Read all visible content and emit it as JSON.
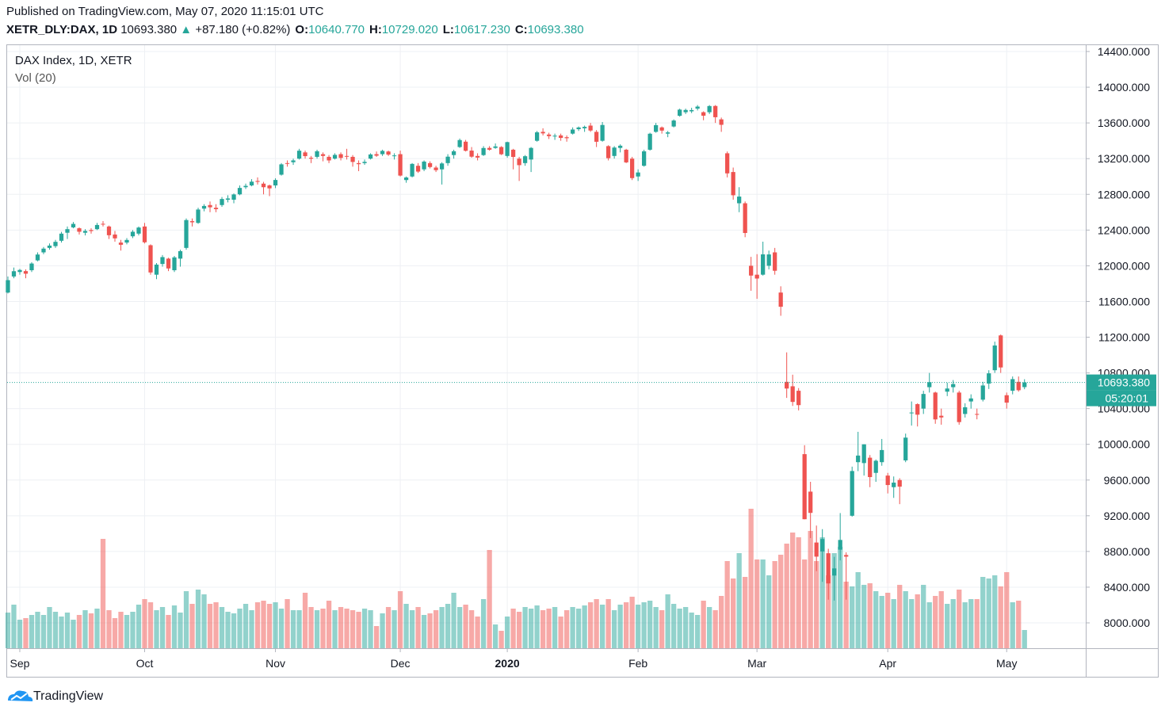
{
  "header": {
    "published": "Published on TradingView.com, May 07, 2020 11:15:01 UTC",
    "symbol": "XETR_DLY:DAX, 1D",
    "price": "10693.380",
    "change": "+87.180 (+0.82%)",
    "fields": [
      {
        "label": "O:",
        "value": "10640.770"
      },
      {
        "label": "H:",
        "value": "10729.020"
      },
      {
        "label": "L:",
        "value": "10617.230"
      },
      {
        "label": "C:",
        "value": "10693.380"
      }
    ]
  },
  "footer": {
    "brand": "TradingView"
  },
  "chart_data": {
    "type": "candlestick",
    "title": "DAX Index, 1D, XETR",
    "subtitle": "Vol (20)",
    "up_color": "#26a69a",
    "down_color": "#ef5350",
    "grid": true,
    "last_price": {
      "value": 10693.38,
      "label": "10693.380"
    },
    "countdown": "05:20:01",
    "xlim": [
      -0.13,
      181.3
    ],
    "ylim": [
      7716,
      14471
    ],
    "xticks": [
      {
        "value": 2,
        "label": "Sep"
      },
      {
        "value": 23,
        "label": "Oct"
      },
      {
        "value": 45,
        "label": "Nov"
      },
      {
        "value": 66,
        "label": "Dec"
      },
      {
        "value": 84,
        "label": "2020"
      },
      {
        "value": 106,
        "label": "Feb"
      },
      {
        "value": 126,
        "label": "Mar"
      },
      {
        "value": 148,
        "label": "Apr"
      },
      {
        "value": 168,
        "label": "May"
      }
    ],
    "yticks": [
      {
        "value": 8000,
        "label": "8000.000"
      },
      {
        "value": 8400,
        "label": "8400.000"
      },
      {
        "value": 8800,
        "label": "8800.000"
      },
      {
        "value": 9200,
        "label": "9200.000"
      },
      {
        "value": 9600,
        "label": "9600.000"
      },
      {
        "value": 10000,
        "label": "10000.000"
      },
      {
        "value": 10400,
        "label": "10400.000"
      },
      {
        "value": 10800,
        "label": "10800.000"
      },
      {
        "value": 11200,
        "label": "11200.000"
      },
      {
        "value": 11600,
        "label": "11600.000"
      },
      {
        "value": 12000,
        "label": "12000.000"
      },
      {
        "value": 12400,
        "label": "12400.000"
      },
      {
        "value": 12800,
        "label": "12800.000"
      },
      {
        "value": 13200,
        "label": "13200.000"
      },
      {
        "value": 13600,
        "label": "13600.000"
      },
      {
        "value": 14000,
        "label": "14000.000"
      },
      {
        "value": 14400,
        "label": "14400.000"
      }
    ],
    "ohlc": [
      [
        11700,
        11880,
        11690,
        11839
      ],
      [
        11880,
        11980,
        11860,
        11939
      ],
      [
        11930,
        11965,
        11900,
        11953
      ],
      [
        11940,
        11960,
        11860,
        11911
      ],
      [
        11950,
        12040,
        11930,
        12025
      ],
      [
        12060,
        12150,
        12050,
        12126
      ],
      [
        12150,
        12210,
        12130,
        12192
      ],
      [
        12200,
        12250,
        12180,
        12226
      ],
      [
        12220,
        12290,
        12200,
        12268
      ],
      [
        12280,
        12380,
        12260,
        12360
      ],
      [
        12370,
        12440,
        12300,
        12410
      ],
      [
        12430,
        12490,
        12420,
        12469
      ],
      [
        12420,
        12430,
        12350,
        12381
      ],
      [
        12370,
        12410,
        12340,
        12390
      ],
      [
        12400,
        12420,
        12360,
        12389
      ],
      [
        12410,
        12480,
        12400,
        12457
      ],
      [
        12470,
        12500,
        12440,
        12468
      ],
      [
        12440,
        12450,
        12300,
        12342
      ],
      [
        12350,
        12390,
        12270,
        12307
      ],
      [
        12260,
        12290,
        12170,
        12235
      ],
      [
        12260,
        12310,
        12240,
        12289
      ],
      [
        12330,
        12400,
        12310,
        12381
      ],
      [
        12360,
        12440,
        12340,
        12428
      ],
      [
        12440,
        12480,
        12250,
        12263
      ],
      [
        12230,
        12240,
        11900,
        11925
      ],
      [
        11900,
        12030,
        11850,
        12013
      ],
      [
        12020,
        12120,
        11990,
        12097
      ],
      [
        12080,
        12090,
        11940,
        11970
      ],
      [
        11950,
        12110,
        11930,
        12094
      ],
      [
        12080,
        12180,
        11990,
        12164
      ],
      [
        12200,
        12530,
        12180,
        12512
      ],
      [
        12500,
        12530,
        12440,
        12487
      ],
      [
        12480,
        12650,
        12470,
        12630
      ],
      [
        12640,
        12690,
        12610,
        12670
      ],
      [
        12680,
        12720,
        12600,
        12655
      ],
      [
        12650,
        12690,
        12600,
        12634
      ],
      [
        12680,
        12770,
        12660,
        12748
      ],
      [
        12740,
        12790,
        12710,
        12754
      ],
      [
        12740,
        12810,
        12700,
        12799
      ],
      [
        12800,
        12900,
        12790,
        12872
      ],
      [
        12880,
        12920,
        12860,
        12895
      ],
      [
        12900,
        12970,
        12890,
        12942
      ],
      [
        12950,
        12990,
        12910,
        12940
      ],
      [
        12920,
        12940,
        12800,
        12880
      ],
      [
        12900,
        12910,
        12780,
        12867
      ],
      [
        12900,
        12980,
        12870,
        12961
      ],
      [
        13020,
        13150,
        13010,
        13136
      ],
      [
        13150,
        13180,
        13110,
        13148
      ],
      [
        13160,
        13200,
        13130,
        13180
      ],
      [
        13200,
        13310,
        13190,
        13289
      ],
      [
        13270,
        13290,
        13200,
        13228
      ],
      [
        13210,
        13230,
        13150,
        13199
      ],
      [
        13220,
        13300,
        13200,
        13283
      ],
      [
        13250,
        13270,
        13170,
        13230
      ],
      [
        13220,
        13240,
        13150,
        13180
      ],
      [
        13200,
        13260,
        13190,
        13242
      ],
      [
        13250,
        13270,
        13180,
        13208
      ],
      [
        13230,
        13310,
        13190,
        13221
      ],
      [
        13220,
        13240,
        13110,
        13163
      ],
      [
        13150,
        13180,
        13060,
        13138
      ],
      [
        13150,
        13190,
        13130,
        13164
      ],
      [
        13200,
        13260,
        13190,
        13247
      ],
      [
        13250,
        13280,
        13220,
        13233
      ],
      [
        13250,
        13300,
        13230,
        13287
      ],
      [
        13280,
        13290,
        13230,
        13245
      ],
      [
        13230,
        13260,
        13190,
        13236
      ],
      [
        13250,
        13290,
        13000,
        13010
      ],
      [
        12960,
        13000,
        12930,
        12989
      ],
      [
        13000,
        13150,
        12990,
        13141
      ],
      [
        13120,
        13150,
        13040,
        13055
      ],
      [
        13080,
        13180,
        13060,
        13167
      ],
      [
        13150,
        13170,
        13090,
        13106
      ],
      [
        13100,
        13120,
        13050,
        13071
      ],
      [
        13080,
        13160,
        12910,
        13146
      ],
      [
        13150,
        13250,
        13120,
        13222
      ],
      [
        13240,
        13300,
        13200,
        13283
      ],
      [
        13330,
        13425,
        13320,
        13408
      ],
      [
        13390,
        13410,
        13280,
        13288
      ],
      [
        13290,
        13330,
        13210,
        13222
      ],
      [
        13230,
        13260,
        13180,
        13212
      ],
      [
        13240,
        13340,
        13230,
        13319
      ],
      [
        13320,
        13340,
        13290,
        13300
      ],
      [
        13320,
        13370,
        13310,
        13337
      ],
      [
        13330,
        13340,
        13240,
        13249
      ],
      [
        13230,
        13390,
        13210,
        13385
      ],
      [
        13300,
        13310,
        13080,
        13219
      ],
      [
        13200,
        13220,
        12950,
        13127
      ],
      [
        13150,
        13240,
        13120,
        13227
      ],
      [
        13190,
        13330,
        13050,
        13320
      ],
      [
        13400,
        13510,
        13390,
        13495
      ],
      [
        13500,
        13540,
        13460,
        13483
      ],
      [
        13470,
        13490,
        13420,
        13452
      ],
      [
        13450,
        13480,
        13410,
        13457
      ],
      [
        13460,
        13480,
        13400,
        13432
      ],
      [
        13440,
        13460,
        13390,
        13429
      ],
      [
        13480,
        13550,
        13470,
        13526
      ],
      [
        13530,
        13560,
        13510,
        13549
      ],
      [
        13540,
        13570,
        13500,
        13556
      ],
      [
        13570,
        13600,
        13500,
        13515
      ],
      [
        13500,
        13520,
        13330,
        13389
      ],
      [
        13400,
        13610,
        13390,
        13577
      ],
      [
        13340,
        13350,
        13180,
        13205
      ],
      [
        13230,
        13340,
        13200,
        13324
      ],
      [
        13320,
        13360,
        13270,
        13345
      ],
      [
        13300,
        13310,
        13150,
        13158
      ],
      [
        13200,
        13220,
        12960,
        12982
      ],
      [
        13000,
        13080,
        12950,
        13045
      ],
      [
        13120,
        13300,
        13110,
        13282
      ],
      [
        13300,
        13490,
        13290,
        13479
      ],
      [
        13500,
        13600,
        13490,
        13575
      ],
      [
        13550,
        13560,
        13480,
        13514
      ],
      [
        13480,
        13510,
        13440,
        13494
      ],
      [
        13560,
        13640,
        13550,
        13627
      ],
      [
        13680,
        13760,
        13670,
        13749
      ],
      [
        13720,
        13760,
        13700,
        13745
      ],
      [
        13730,
        13770,
        13710,
        13744
      ],
      [
        13760,
        13800,
        13740,
        13783
      ],
      [
        13720,
        13730,
        13630,
        13681
      ],
      [
        13720,
        13800,
        13700,
        13789
      ],
      [
        13790,
        13800,
        13600,
        13664
      ],
      [
        13640,
        13660,
        13500,
        13579
      ],
      [
        13260,
        13280,
        12990,
        13035
      ],
      [
        13050,
        13100,
        12740,
        12790
      ],
      [
        12700,
        12880,
        12600,
        12775
      ],
      [
        12700,
        12720,
        12320,
        12367
      ],
      [
        12000,
        12100,
        11720,
        11890
      ],
      [
        11900,
        12130,
        11630,
        11857
      ],
      [
        11900,
        12270,
        11890,
        12128
      ],
      [
        12000,
        12170,
        11960,
        12127
      ],
      [
        12150,
        12200,
        11900,
        11944
      ],
      [
        11700,
        11770,
        11440,
        11541
      ],
      [
        10700,
        11030,
        10520,
        10625
      ],
      [
        10650,
        10780,
        10430,
        10475
      ],
      [
        10600,
        10630,
        10380,
        10439
      ],
      [
        9890,
        9990,
        9160,
        9161
      ],
      [
        9470,
        9580,
        8950,
        9232
      ],
      [
        8900,
        9090,
        8580,
        8742
      ],
      [
        8800,
        9050,
        8460,
        8939
      ],
      [
        8780,
        8830,
        8260,
        8442
      ],
      [
        8530,
        8740,
        8250,
        8610
      ],
      [
        8820,
        9230,
        8700,
        8929
      ],
      [
        8760,
        8790,
        8260,
        8742
      ],
      [
        9200,
        9750,
        9190,
        9701
      ],
      [
        9800,
        10140,
        9700,
        9874
      ],
      [
        9790,
        10000,
        9650,
        10000
      ],
      [
        9850,
        9880,
        9520,
        9633
      ],
      [
        9680,
        9830,
        9580,
        9816
      ],
      [
        9800,
        10060,
        9760,
        9936
      ],
      [
        9650,
        9680,
        9450,
        9544
      ],
      [
        9520,
        9640,
        9400,
        9571
      ],
      [
        9600,
        9620,
        9330,
        9526
      ],
      [
        9820,
        10120,
        9800,
        10075
      ],
      [
        10350,
        10480,
        10210,
        10356
      ],
      [
        10450,
        10460,
        10200,
        10332
      ],
      [
        10400,
        10600,
        10340,
        10564
      ],
      [
        10640,
        10800,
        10580,
        10696
      ],
      [
        10580,
        10590,
        10230,
        10279
      ],
      [
        10320,
        10400,
        10220,
        10301
      ],
      [
        10590,
        10690,
        10540,
        10625
      ],
      [
        10640,
        10720,
        10580,
        10675
      ],
      [
        10580,
        10600,
        10220,
        10249
      ],
      [
        10340,
        10460,
        10300,
        10415
      ],
      [
        10480,
        10560,
        10400,
        10514
      ],
      [
        10340,
        10400,
        10280,
        10336
      ],
      [
        10500,
        10700,
        10480,
        10659
      ],
      [
        10680,
        10830,
        10620,
        10795
      ],
      [
        10830,
        11150,
        10800,
        11107
      ],
      [
        11220,
        11230,
        10800,
        10861
      ],
      [
        10550,
        10580,
        10400,
        10467
      ],
      [
        10600,
        10760,
        10560,
        10730
      ],
      [
        10700,
        10760,
        10590,
        10606
      ],
      [
        10640.77,
        10729.02,
        10617.23,
        10693.38
      ]
    ],
    "volume": [
      45,
      55,
      36,
      38,
      42,
      46,
      42,
      52,
      46,
      40,
      45,
      36,
      42,
      48,
      44,
      50,
      138,
      48,
      38,
      46,
      42,
      46,
      55,
      62,
      58,
      48,
      52,
      42,
      54,
      45,
      72,
      56,
      74,
      68,
      56,
      58,
      52,
      46,
      44,
      50,
      56,
      48,
      58,
      60,
      56,
      58,
      50,
      62,
      48,
      48,
      70,
      52,
      48,
      50,
      60,
      48,
      52,
      50,
      48,
      46,
      50,
      48,
      28,
      44,
      52,
      48,
      72,
      56,
      48,
      52,
      42,
      44,
      48,
      52,
      56,
      70,
      52,
      55,
      48,
      40,
      62,
      124,
      30,
      22,
      40,
      50,
      46,
      52,
      50,
      54,
      48,
      50,
      52,
      40,
      48,
      52,
      50,
      54,
      58,
      62,
      55,
      62,
      48,
      55,
      58,
      65,
      55,
      58,
      60,
      52,
      48,
      68,
      56,
      50,
      52,
      45,
      42,
      60,
      52,
      48,
      66,
      110,
      88,
      120,
      90,
      176,
      112,
      112,
      92,
      110,
      118,
      132,
      146,
      140,
      112,
      148,
      110,
      140,
      92,
      120,
      128,
      84,
      78,
      96,
      80,
      82,
      72,
      66,
      70,
      62,
      80,
      72,
      62,
      68,
      80,
      58,
      66,
      72,
      56,
      62,
      74,
      58,
      62,
      62,
      90,
      88,
      92,
      78,
      96,
      58,
      60,
      23
    ]
  }
}
